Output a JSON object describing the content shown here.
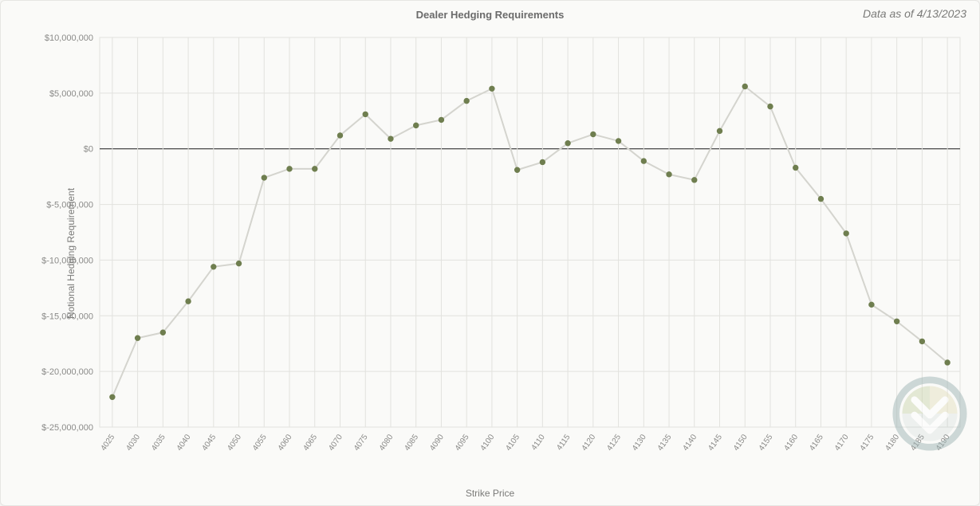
{
  "chart": {
    "type": "line",
    "title": "Dealer Hedging Requirements",
    "data_as_of": "Data as of 4/13/2023",
    "x_axis_label": "Strike Price",
    "y_axis_label": "Notional Hedging Requirement",
    "background_color": "#fafaf8",
    "frame_border_color": "#e6e6e3",
    "grid_color": "#e2e2de",
    "zero_line_color": "#555555",
    "line_color": "#d4d4ce",
    "marker_color": "#6f7e4f",
    "line_width": 2,
    "marker_radius": 3.2,
    "title_fontsize": 13,
    "axis_label_fontsize": 12,
    "tick_fontsize": 11,
    "ylim": [
      -25000000,
      10000000
    ],
    "y_ticks": [
      {
        "v": 10000000,
        "label": "$10,000,000"
      },
      {
        "v": 5000000,
        "label": "$5,000,000"
      },
      {
        "v": 0,
        "label": "$0"
      },
      {
        "v": -5000000,
        "label": "$-5,000,000"
      },
      {
        "v": -10000000,
        "label": "$-10,000,000"
      },
      {
        "v": -15000000,
        "label": "$-15,000,000"
      },
      {
        "v": -20000000,
        "label": "$-20,000,000"
      },
      {
        "v": -25000000,
        "label": "$-25,000,000"
      }
    ],
    "x_ticks": [
      "4025",
      "4030",
      "4035",
      "4040",
      "4045",
      "4050",
      "4055",
      "4060",
      "4065",
      "4070",
      "4075",
      "4080",
      "4085",
      "4090",
      "4095",
      "4100",
      "4105",
      "4110",
      "4115",
      "4120",
      "4125",
      "4130",
      "4135",
      "4140",
      "4145",
      "4150",
      "4155",
      "4160",
      "4165",
      "4170",
      "4175",
      "4180",
      "4185",
      "4190"
    ],
    "series": [
      {
        "x": "4025",
        "y": -22300000
      },
      {
        "x": "4030",
        "y": -17000000
      },
      {
        "x": "4035",
        "y": -16500000
      },
      {
        "x": "4040",
        "y": -13700000
      },
      {
        "x": "4045",
        "y": -10600000
      },
      {
        "x": "4050",
        "y": -10300000
      },
      {
        "x": "4055",
        "y": -2600000
      },
      {
        "x": "4060",
        "y": -1800000
      },
      {
        "x": "4065",
        "y": -1800000
      },
      {
        "x": "4070",
        "y": 1200000
      },
      {
        "x": "4075",
        "y": 3100000
      },
      {
        "x": "4080",
        "y": 900000
      },
      {
        "x": "4085",
        "y": 2100000
      },
      {
        "x": "4090",
        "y": 2600000
      },
      {
        "x": "4095",
        "y": 4300000
      },
      {
        "x": "4100",
        "y": 5400000
      },
      {
        "x": "4105",
        "y": -1900000
      },
      {
        "x": "4110",
        "y": -1200000
      },
      {
        "x": "4115",
        "y": 500000
      },
      {
        "x": "4120",
        "y": 1300000
      },
      {
        "x": "4125",
        "y": 700000
      },
      {
        "x": "4130",
        "y": -1100000
      },
      {
        "x": "4135",
        "y": -2300000
      },
      {
        "x": "4140",
        "y": -2800000
      },
      {
        "x": "4145",
        "y": 1600000
      },
      {
        "x": "4150",
        "y": 5600000
      },
      {
        "x": "4155",
        "y": 3800000
      },
      {
        "x": "4160",
        "y": -1700000
      },
      {
        "x": "4165",
        "y": -4500000
      },
      {
        "x": "4170",
        "y": -7600000
      },
      {
        "x": "4175",
        "y": -14000000
      },
      {
        "x": "4180",
        "y": -15500000
      },
      {
        "x": "4185",
        "y": -17300000
      },
      {
        "x": "4190",
        "y": -19200000
      }
    ],
    "watermark": {
      "ring_color": "#9db4b4",
      "fill1": "#cdd6b0",
      "fill2": "#e6e1c0",
      "chevron_color": "#ffffff",
      "size": 96
    }
  }
}
